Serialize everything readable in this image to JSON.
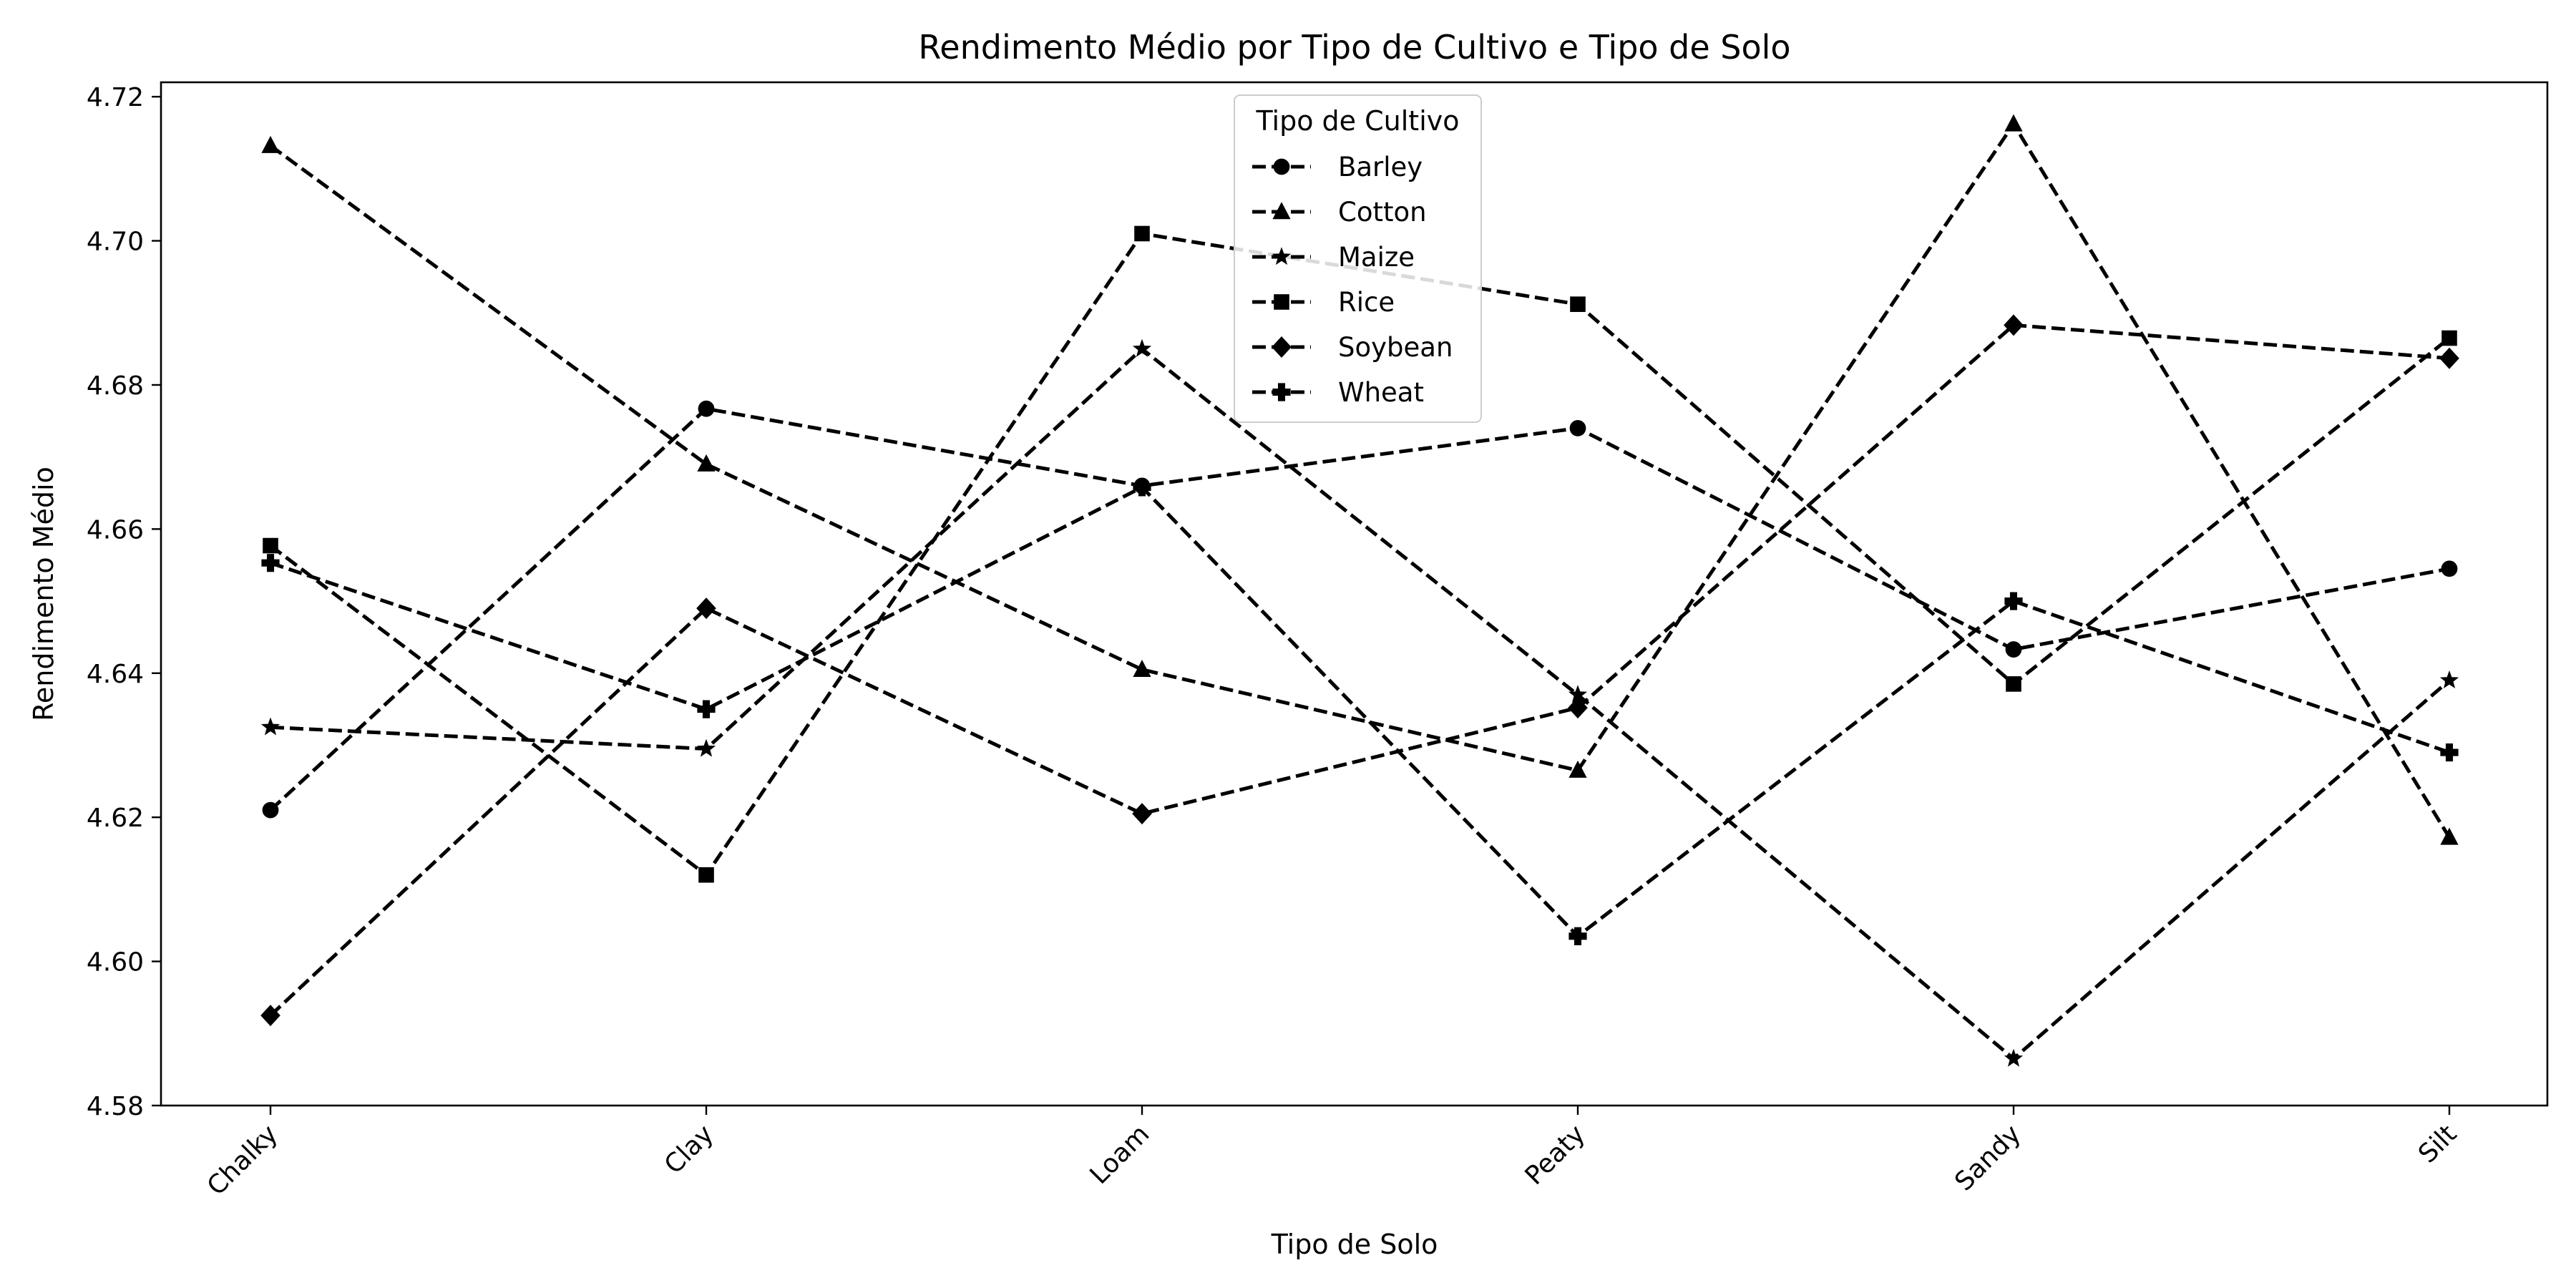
{
  "chart_data": {
    "type": "line",
    "title": "Rendimento Médio por Tipo de Cultivo e Tipo de Solo",
    "xlabel": "Tipo de Solo",
    "ylabel": "Rendimento Médio",
    "categories": [
      "Chalky",
      "Clay",
      "Loam",
      "Peaty",
      "Sandy",
      "Silt"
    ],
    "ylim": [
      4.58,
      4.722
    ],
    "yticks": [
      "4.58",
      "4.60",
      "4.62",
      "4.64",
      "4.66",
      "4.68",
      "4.70",
      "4.72"
    ],
    "grid": false,
    "line_style": "dashed",
    "line_color": "#000000",
    "legend": {
      "title": "Tipo de Cultivo",
      "placement": "top-center"
    },
    "series": [
      {
        "name": "Barley",
        "marker": "circle",
        "values": [
          4.621,
          4.6767,
          4.666,
          4.674,
          4.6433,
          4.6545
        ]
      },
      {
        "name": "Cotton",
        "marker": "triangle",
        "values": [
          4.7132,
          4.669,
          4.6405,
          4.6265,
          4.7162,
          4.6172
        ]
      },
      {
        "name": "Maize",
        "marker": "star",
        "values": [
          4.6325,
          4.6295,
          4.685,
          4.637,
          4.5865,
          4.639
        ]
      },
      {
        "name": "Rice",
        "marker": "square",
        "values": [
          4.6577,
          4.612,
          4.701,
          4.6912,
          4.6385,
          4.6865
        ]
      },
      {
        "name": "Soybean",
        "marker": "diamond",
        "values": [
          4.5925,
          4.649,
          4.6205,
          4.6352,
          4.6883,
          4.6837
        ]
      },
      {
        "name": "Wheat",
        "marker": "plus",
        "values": [
          4.6553,
          4.635,
          4.6658,
          4.6035,
          4.65,
          4.629
        ]
      }
    ]
  }
}
